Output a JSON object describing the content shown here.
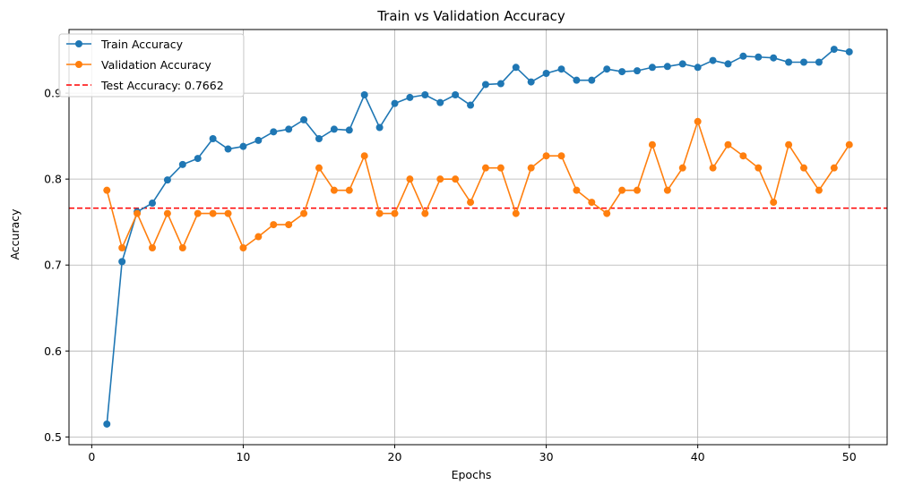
{
  "chart_data": {
    "type": "line",
    "title": "Train vs Validation Accuracy",
    "xlabel": "Epochs",
    "ylabel": "Accuracy",
    "xlim": [
      -1.5,
      52.5
    ],
    "ylim": [
      0.491,
      0.974
    ],
    "xticks": [
      0,
      10,
      20,
      30,
      40,
      50
    ],
    "yticks": [
      0.5,
      0.6,
      0.7,
      0.8,
      0.9
    ],
    "grid": true,
    "legend_position": "upper-left",
    "x": [
      1,
      2,
      3,
      4,
      5,
      6,
      7,
      8,
      9,
      10,
      11,
      12,
      13,
      14,
      15,
      16,
      17,
      18,
      19,
      20,
      21,
      22,
      23,
      24,
      25,
      26,
      27,
      28,
      29,
      30,
      31,
      32,
      33,
      34,
      35,
      36,
      37,
      38,
      39,
      40,
      41,
      42,
      43,
      44,
      45,
      46,
      47,
      48,
      49,
      50
    ],
    "series": [
      {
        "name": "Train Accuracy",
        "color": "#1f77b4",
        "marker": "circle",
        "values": [
          0.515,
          0.704,
          0.762,
          0.772,
          0.799,
          0.817,
          0.824,
          0.847,
          0.835,
          0.838,
          0.845,
          0.855,
          0.858,
          0.869,
          0.847,
          0.858,
          0.857,
          0.898,
          0.86,
          0.888,
          0.895,
          0.898,
          0.889,
          0.898,
          0.886,
          0.91,
          0.911,
          0.93,
          0.913,
          0.923,
          0.928,
          0.915,
          0.915,
          0.928,
          0.925,
          0.926,
          0.93,
          0.931,
          0.934,
          0.93,
          0.938,
          0.934,
          0.943,
          0.942,
          0.941,
          0.936,
          0.936,
          0.936,
          0.951,
          0.948
        ]
      },
      {
        "name": "Validation Accuracy",
        "color": "#ff7f0e",
        "marker": "circle",
        "values": [
          0.787,
          0.72,
          0.76,
          0.72,
          0.76,
          0.72,
          0.76,
          0.76,
          0.76,
          0.72,
          0.733,
          0.747,
          0.747,
          0.76,
          0.813,
          0.787,
          0.787,
          0.827,
          0.76,
          0.76,
          0.8,
          0.76,
          0.8,
          0.8,
          0.773,
          0.813,
          0.813,
          0.76,
          0.813,
          0.827,
          0.827,
          0.787,
          0.773,
          0.76,
          0.787,
          0.787,
          0.84,
          0.787,
          0.813,
          0.867,
          0.813,
          0.84,
          0.827,
          0.813,
          0.773,
          0.84,
          0.813,
          0.787,
          0.813,
          0.84
        ]
      }
    ],
    "reference_line": {
      "name": "Test Accuracy: 0.7662",
      "value": 0.7662,
      "color": "#ff0000",
      "style": "dashed"
    }
  }
}
